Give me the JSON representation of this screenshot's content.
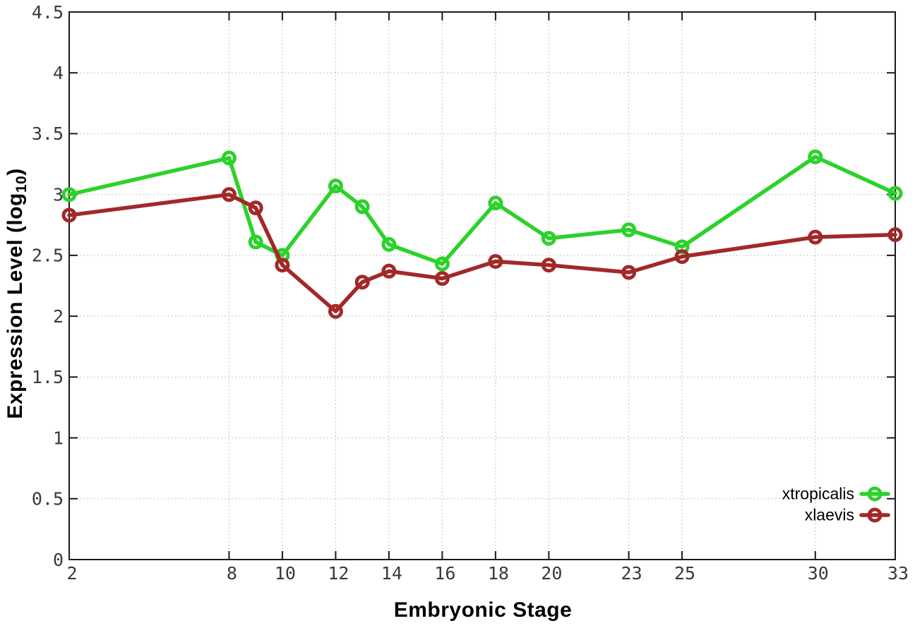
{
  "chart_data": {
    "type": "line",
    "title": "",
    "xlabel": "Embryonic Stage",
    "ylabel_prefix": "Expression Level (log",
    "ylabel_sub": "10",
    "ylabel_suffix": ")",
    "x": [
      2,
      8,
      9,
      10,
      12,
      13,
      14,
      16,
      18,
      20,
      23,
      25,
      30,
      33
    ],
    "series": [
      {
        "name": "xtropicalis",
        "color": "#2bd22b",
        "values": [
          3.0,
          3.3,
          2.61,
          2.5,
          3.07,
          2.9,
          2.59,
          2.43,
          2.93,
          2.64,
          2.71,
          2.57,
          3.31,
          3.01
        ]
      },
      {
        "name": "xlaevis",
        "color": "#a32828",
        "values": [
          2.83,
          3.0,
          2.89,
          2.42,
          2.04,
          2.28,
          2.37,
          2.31,
          2.45,
          2.42,
          2.36,
          2.49,
          2.65,
          2.67
        ]
      }
    ],
    "xlim": [
      2,
      33
    ],
    "ylim": [
      0,
      4.5
    ],
    "xticks": [
      2,
      8,
      10,
      12,
      14,
      16,
      18,
      20,
      23,
      25,
      30,
      33
    ],
    "xtick_labels": [
      "2",
      "8",
      "10",
      "12",
      "14",
      "16",
      "18",
      "20",
      "23",
      "25",
      "30",
      "33"
    ],
    "ytick_values": [
      0,
      0.5,
      1,
      1.5,
      2,
      2.5,
      3,
      3.5,
      4,
      4.5
    ],
    "ytick_labels": [
      "0",
      "0.5",
      "1",
      "1.5",
      "2",
      "2.5",
      "3",
      "3.5",
      "4",
      "4.5"
    ],
    "grid": true,
    "legend_position": "bottom-right",
    "marker": "open-circle",
    "colors": {
      "axis": "#1a1a1a",
      "grid": "#b3b3b3",
      "tick_label": "#3a3a3a",
      "legend_text": "#000000",
      "background": "#ffffff"
    }
  }
}
